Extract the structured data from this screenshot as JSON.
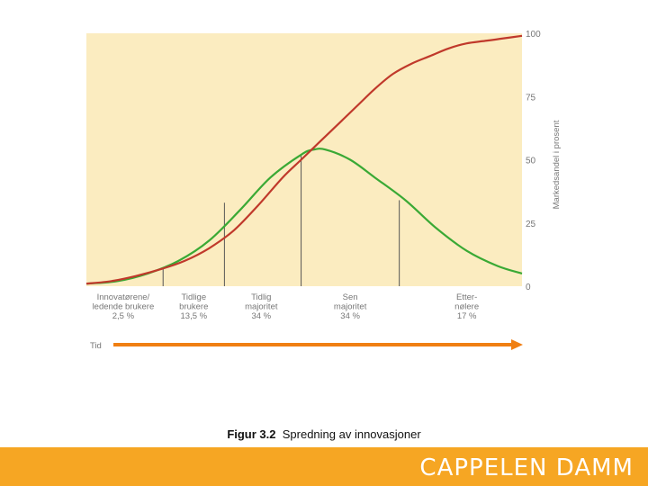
{
  "chart_data": {
    "type": "line",
    "title": "",
    "ylabel": "Markedsandel i prosent",
    "xlabel": "Tid",
    "ylim": [
      0,
      100
    ],
    "yticks": [
      0,
      25,
      50,
      75,
      100
    ],
    "y_axis_position": "right",
    "grid": false,
    "x": [
      0,
      10,
      20,
      30,
      40,
      50,
      60,
      70,
      80,
      90,
      100
    ],
    "series": [
      {
        "values": [
          0,
          1,
          3,
          7,
          14,
          27,
          44,
          61,
          77,
          88,
          96
        ],
        "color": "#c0392b",
        "note": "cumulative adoption (S-curve)"
      },
      {
        "values": [
          1,
          3,
          8,
          18,
          34,
          52,
          49,
          33,
          16,
          7,
          3
        ],
        "color": "#3aa935",
        "note": "adoption distribution (bell curve)"
      }
    ],
    "cumulative": [
      [
        0,
        1
      ],
      [
        8,
        2
      ],
      [
        16,
        4
      ],
      [
        25,
        7
      ],
      [
        32,
        10
      ],
      [
        40,
        15
      ],
      [
        48,
        22
      ],
      [
        56,
        32
      ],
      [
        64,
        43
      ],
      [
        70,
        50
      ],
      [
        76,
        57
      ],
      [
        82,
        64
      ],
      [
        88,
        71
      ],
      [
        94,
        78
      ],
      [
        100,
        84
      ],
      [
        106,
        88
      ],
      [
        112,
        91
      ],
      [
        118,
        94
      ],
      [
        124,
        96
      ],
      [
        130,
        97
      ],
      [
        136,
        98
      ],
      [
        142,
        99
      ]
    ],
    "bell": [
      [
        0,
        1
      ],
      [
        10,
        2
      ],
      [
        20,
        5
      ],
      [
        30,
        10
      ],
      [
        40,
        18
      ],
      [
        50,
        30
      ],
      [
        60,
        43
      ],
      [
        70,
        52
      ],
      [
        74,
        54
      ],
      [
        78,
        54
      ],
      [
        86,
        50
      ],
      [
        94,
        43
      ],
      [
        104,
        34
      ],
      [
        114,
        23
      ],
      [
        124,
        14
      ],
      [
        134,
        8
      ],
      [
        142,
        5
      ]
    ],
    "x_domain": [
      0,
      142
    ],
    "dividers": [
      {
        "x": 25,
        "y": 7
      },
      {
        "x": 45,
        "y": 33
      },
      {
        "x": 70,
        "y": 52
      },
      {
        "x": 102,
        "y": 34
      }
    ],
    "categories": [
      {
        "lines": [
          "Innovatørene/",
          "ledende brukere",
          "2,5 %"
        ],
        "x": 12
      },
      {
        "lines": [
          "Tidlige",
          "brukere",
          "13,5 %"
        ],
        "x": 35
      },
      {
        "lines": [
          "Tidlig",
          "majoritet",
          "34 %"
        ],
        "x": 57
      },
      {
        "lines": [
          "Sen",
          "majoritet",
          "34 %"
        ],
        "x": 86
      },
      {
        "lines": [
          "Etter-",
          "nølere",
          "17 %"
        ],
        "x": 124
      }
    ],
    "colors": {
      "background": "#fbecc0",
      "arrow": "#f07f12",
      "s_curve": "#c0392b",
      "bell_curve": "#3aa935",
      "divider": "#555555"
    }
  },
  "caption": {
    "number": "Figur 3.2",
    "text": "Spredning av innovasjoner"
  },
  "footer": {
    "brand": "CAPPELEN DAMM",
    "color": "#f6a623"
  }
}
